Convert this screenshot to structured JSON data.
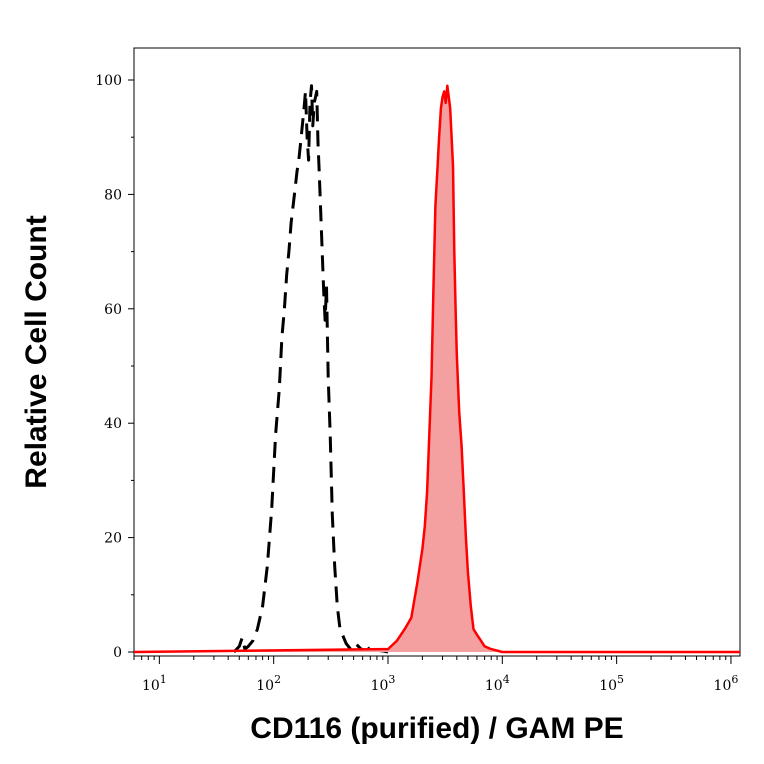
{
  "chart_data": {
    "type": "area",
    "xlabel": "CD116 (purified) / GAM PE",
    "ylabel": "Relative Cell Count",
    "x_scale": "log",
    "xlim": [
      6,
      1200000
    ],
    "ylim": [
      0,
      100
    ],
    "x_ticks": [
      {
        "value": 10,
        "base": "10",
        "exp": "1"
      },
      {
        "value": 100,
        "base": "10",
        "exp": "2"
      },
      {
        "value": 1000,
        "base": "10",
        "exp": "3"
      },
      {
        "value": 10000,
        "base": "10",
        "exp": "4"
      },
      {
        "value": 100000,
        "base": "10",
        "exp": "5"
      },
      {
        "value": 1000000,
        "base": "10",
        "exp": "6"
      }
    ],
    "y_ticks": [
      0,
      20,
      40,
      60,
      80,
      100
    ],
    "grid": false,
    "legend": "none",
    "series": [
      {
        "style": "dashed",
        "color": "#000000",
        "fill": "none",
        "x": [
          45,
          50,
          53,
          56,
          60,
          66,
          72,
          80,
          88,
          96,
          104,
          112,
          118,
          124,
          130,
          136,
          142,
          148,
          154,
          160,
          166,
          172,
          178,
          184,
          190,
          196,
          202,
          208,
          214,
          220,
          226,
          232,
          238,
          244,
          250,
          258,
          266,
          274,
          282,
          290,
          300,
          312,
          326,
          342,
          360,
          380,
          400,
          430,
          470,
          520,
          580,
          650,
          720,
          800,
          900,
          1000
        ],
        "values": [
          0,
          1,
          2.5,
          0.5,
          1,
          2,
          4,
          8,
          15,
          25,
          38,
          46,
          55,
          60,
          66,
          70,
          75,
          78,
          81,
          84,
          86,
          89,
          92,
          95,
          98,
          90,
          86,
          96,
          99,
          92,
          96,
          97,
          98,
          89,
          84,
          77,
          70,
          63,
          58,
          64,
          48,
          38,
          24,
          15,
          8,
          4,
          3,
          1.5,
          0.5,
          1.5,
          0.5,
          0.3,
          1,
          0.3,
          0.2,
          0
        ]
      },
      {
        "style": "solid",
        "color": "#ff0000",
        "fill": "#f5a0a0",
        "x": [
          6,
          1000,
          1200,
          1400,
          1600,
          1800,
          2000,
          2100,
          2200,
          2300,
          2400,
          2500,
          2600,
          2700,
          2800,
          2900,
          3000,
          3100,
          3200,
          3300,
          3400,
          3500,
          3600,
          3700,
          3800,
          3900,
          4000,
          4200,
          4400,
          4600,
          4800,
          5000,
          5300,
          5600,
          6000,
          6500,
          7000,
          8000,
          10000,
          1200000
        ],
        "values": [
          0,
          0.5,
          2,
          4,
          6,
          12,
          18,
          22,
          28,
          38,
          48,
          64,
          78,
          84,
          90,
          95,
          97,
          98,
          96,
          99,
          97,
          95,
          90,
          85,
          70,
          60,
          52,
          42,
          36,
          28,
          20,
          14,
          8,
          4,
          3,
          2,
          1,
          0.5,
          0,
          0
        ]
      }
    ]
  }
}
